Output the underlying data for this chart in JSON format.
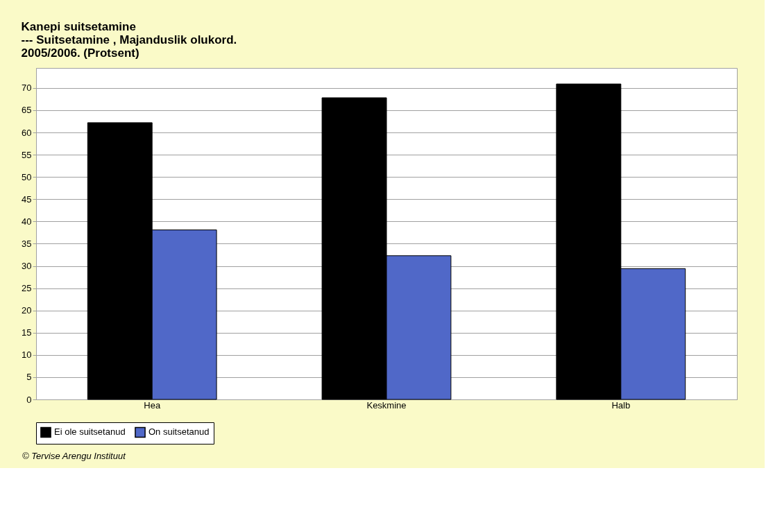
{
  "chart_data": {
    "type": "bar",
    "title": "Kanepi suitsetamine\n--- Suitsetamine , Majanduslik olukord.\n2005/2006. (Protsent)",
    "categories": [
      "Hea",
      "Keskmine",
      "Halb"
    ],
    "series": [
      {
        "name": "Ei ole suitsetanud",
        "color": "#000000",
        "values": [
          62.2,
          67.8,
          70.9
        ]
      },
      {
        "name": "On suitsetanud",
        "color": "#5068c8",
        "values": [
          38.1,
          32.3,
          29.4
        ]
      }
    ],
    "ylim": [
      0,
      74.5
    ],
    "yticks": [
      0,
      5,
      10,
      15,
      20,
      25,
      30,
      35,
      40,
      45,
      50,
      55,
      60,
      65,
      70
    ],
    "grid": "y",
    "legend": "bottom",
    "annotations": [
      "© Tervise Arengu Instituut"
    ]
  }
}
